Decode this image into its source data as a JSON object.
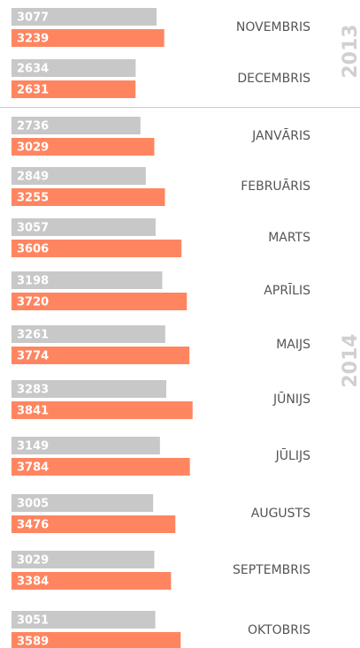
{
  "chart_data": {
    "type": "bar",
    "orientation": "horizontal",
    "categories": [
      "NOVEMBRIS",
      "DECEMBRIS",
      "JANVĀRIS",
      "FEBRUĀRIS",
      "MARTS",
      "APRĪLIS",
      "MAIJS",
      "JŪNIJS",
      "JŪLIJS",
      "AUGUSTS",
      "SEPTEMBRIS",
      "OKTOBRIS"
    ],
    "series": [
      {
        "color": "#c8c8c8",
        "values": [
          3077,
          2634,
          2736,
          2849,
          3057,
          3198,
          3261,
          3283,
          3149,
          3005,
          3029,
          3051
        ]
      },
      {
        "color": "#ff8560",
        "values": [
          3239,
          2631,
          3029,
          3255,
          3606,
          3720,
          3774,
          3841,
          3784,
          3476,
          3384,
          3589
        ]
      }
    ],
    "annotations": [
      "2013",
      "2014"
    ]
  }
}
